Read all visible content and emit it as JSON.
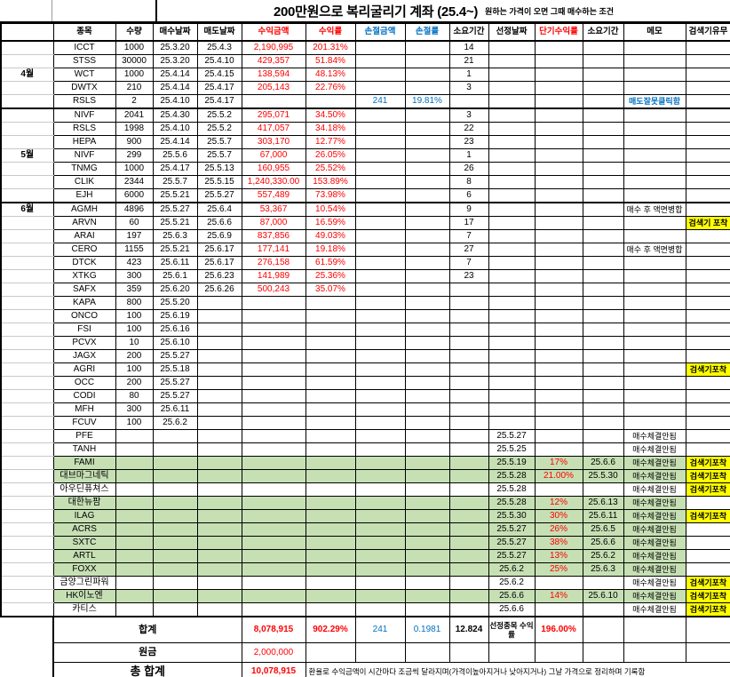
{
  "title": {
    "main": "200만원으로 복리굴리기 계좌 (25.4~)",
    "sub": "원하는 가격이 오면 그때 매수하는 조건"
  },
  "columns": [
    {
      "key": "month",
      "label": ""
    },
    {
      "key": "stock",
      "label": "종목"
    },
    {
      "key": "qty",
      "label": "수량"
    },
    {
      "key": "buy",
      "label": "매수날짜"
    },
    {
      "key": "sell",
      "label": "매도날짜"
    },
    {
      "key": "profit_amt",
      "label": "수익금액",
      "color": "red"
    },
    {
      "key": "profit_rate",
      "label": "수익률",
      "color": "red"
    },
    {
      "key": "loss_amt",
      "label": "손절금액",
      "color": "blue"
    },
    {
      "key": "loss_rate",
      "label": "손절률",
      "color": "blue"
    },
    {
      "key": "dur1",
      "label": "소요기간"
    },
    {
      "key": "sel_date",
      "label": "선정날짜"
    },
    {
      "key": "short_rate",
      "label": "단기수익률",
      "color": "red"
    },
    {
      "key": "dur2",
      "label": "소요기간"
    },
    {
      "key": "memo",
      "label": "메모"
    },
    {
      "key": "flag",
      "label": "검색기유무"
    }
  ],
  "rows": [
    {
      "stock": "ICCT",
      "qty": "1000",
      "buy": "25.3.20",
      "sell": "25.4.3",
      "profit_amt": "2,190,995",
      "profit_rate": "201.31%",
      "dur1": "14"
    },
    {
      "stock": "STSS",
      "qty": "30000",
      "buy": "25.3.20",
      "sell": "25.4.10",
      "profit_amt": "429,357",
      "profit_rate": "51.84%",
      "dur1": "21"
    },
    {
      "month": "4월",
      "stock": "WCT",
      "qty": "1000",
      "buy": "25.4.14",
      "sell": "25.4.15",
      "profit_amt": "138,594",
      "profit_rate": "48.13%",
      "dur1": "1"
    },
    {
      "stock": "DWTX",
      "qty": "210",
      "buy": "25.4.14",
      "sell": "25.4.17",
      "profit_amt": "205,143",
      "profit_rate": "22.76%",
      "dur1": "3"
    },
    {
      "stock": "RSLS",
      "qty": "2",
      "buy": "25.4.10",
      "sell": "25.4.17",
      "loss_amt": "241",
      "loss_rate": "19.81%",
      "memo": "매도잘못클릭함",
      "memo_blue": true
    },
    {
      "section": true,
      "stock": "NIVF",
      "qty": "2041",
      "buy": "25.4.30",
      "sell": "25.5.2",
      "profit_amt": "295,071",
      "profit_rate": "34.50%",
      "dur1": "3"
    },
    {
      "stock": "RSLS",
      "qty": "1998",
      "buy": "25.4.10",
      "sell": "25.5.2",
      "profit_amt": "417,057",
      "profit_rate": "34.18%",
      "dur1": "22"
    },
    {
      "stock": "HEPA",
      "qty": "900",
      "buy": "25.4.14",
      "sell": "25.5.7",
      "profit_amt": "303,170",
      "profit_rate": "12.77%",
      "dur1": "23"
    },
    {
      "month": "5월",
      "stock": "NIVF",
      "qty": "299",
      "buy": "25.5.6",
      "sell": "25.5.7",
      "profit_amt": "67,000",
      "profit_rate": "26.05%",
      "dur1": "1"
    },
    {
      "stock": "TNMG",
      "qty": "1000",
      "buy": "25.4.17",
      "sell": "25.5.13",
      "profit_amt": "160,955",
      "profit_rate": "25.52%",
      "dur1": "26"
    },
    {
      "stock": "CLIK",
      "qty": "2344",
      "buy": "25.5.7",
      "sell": "25.5.15",
      "profit_amt": "1,240,330.00",
      "profit_rate": "153.89%",
      "dur1": "8"
    },
    {
      "stock": "EJH",
      "qty": "6000",
      "buy": "25.5.21",
      "sell": "25.5.27",
      "profit_amt": "557,489",
      "profit_rate": "73.98%",
      "dur1": "6"
    },
    {
      "section": true,
      "month": "6월",
      "stock": "AGMH",
      "qty": "4896",
      "buy": "25.5.27",
      "sell": "25.6.4",
      "profit_amt": "53,367",
      "profit_rate": "10.54%",
      "dur1": "9",
      "memo": "매수 후 액면병합"
    },
    {
      "stock": "ARVN",
      "qty": "60",
      "buy": "25.5.21",
      "sell": "25.6.6",
      "profit_amt": "87,000",
      "profit_rate": "16.59%",
      "dur1": "17",
      "flag": "검색기 포착"
    },
    {
      "stock": "ARAI",
      "qty": "197",
      "buy": "25.6.3",
      "sell": "25.6.9",
      "profit_amt": "837,856",
      "profit_rate": "49.03%",
      "dur1": "7"
    },
    {
      "stock": "CERO",
      "qty": "1155",
      "buy": "25.5.21",
      "sell": "25.6.17",
      "profit_amt": "177,141",
      "profit_rate": "19.18%",
      "dur1": "27",
      "memo": "매수 후 액면병합"
    },
    {
      "stock": "DTCK",
      "qty": "423",
      "buy": "25.6.11",
      "sell": "25.6.17",
      "profit_amt": "276,158",
      "profit_rate": "61.59%",
      "dur1": "7"
    },
    {
      "stock": "XTKG",
      "qty": "300",
      "buy": "25.6.1",
      "sell": "25.6.23",
      "profit_amt": "141,989",
      "profit_rate": "25.36%",
      "dur1": "23"
    },
    {
      "stock": "SAFX",
      "qty": "359",
      "buy": "25.6.20",
      "sell": "25.6.26",
      "profit_amt": "500,243",
      "profit_rate": "35.07%"
    },
    {
      "stock": "KAPA",
      "qty": "800",
      "buy": "25.5.20"
    },
    {
      "stock": "ONCO",
      "qty": "100",
      "buy": "25.6.19"
    },
    {
      "stock": "FSI",
      "qty": "100",
      "buy": "25.6.16"
    },
    {
      "stock": "PCVX",
      "qty": "10",
      "buy": "25.6.10"
    },
    {
      "stock": "JAGX",
      "qty": "200",
      "buy": "25.5.27"
    },
    {
      "stock": "AGRI",
      "qty": "100",
      "buy": "25.5.18",
      "flag": "검색기포착"
    },
    {
      "stock": "OCC",
      "qty": "200",
      "buy": "25.5.27"
    },
    {
      "stock": "CODI",
      "qty": "80",
      "buy": "25.5.27"
    },
    {
      "stock": "MFH",
      "qty": "300",
      "buy": "25.6.11"
    },
    {
      "stock": "FCUV",
      "qty": "100",
      "buy": "25.6.2"
    },
    {
      "stock": "PFE",
      "sel_date": "25.5.27",
      "memo": "매수체결안됨"
    },
    {
      "stock": "TANH",
      "sel_date": "25.5.25",
      "memo": "매수체결안됨"
    },
    {
      "green": true,
      "stock": "FAMI",
      "sel_date": "25.5.19",
      "short_rate": "17%",
      "dur2": "25.6.6",
      "memo": "매수체결안됨",
      "flag": "검색기포착"
    },
    {
      "green": true,
      "stock": "대브마그네틱",
      "sel_date": "25.5.28",
      "short_rate": "21.00%",
      "dur2": "25.5.30",
      "memo": "매수체결안됨",
      "flag": "검색기포착"
    },
    {
      "stock": "아우딘퓨쳐스",
      "sel_date": "25.5.28",
      "memo": "매수체결안됨",
      "flag": "검색기포착"
    },
    {
      "green": true,
      "stock": "대한뉴팜",
      "sel_date": "25.5.28",
      "short_rate": "12%",
      "dur2": "25.6.13",
      "memo": "매수체결안됨"
    },
    {
      "green": true,
      "stock": "ILAG",
      "sel_date": "25.5.30",
      "short_rate": "30%",
      "dur2": "25.6.11",
      "memo": "매수체결안됨",
      "flag": "검색기포착"
    },
    {
      "green": true,
      "stock": "ACRS",
      "sel_date": "25.5.27",
      "short_rate": "26%",
      "dur2": "25.6.5",
      "memo": "매수체결안됨"
    },
    {
      "green": true,
      "stock": "SXTC",
      "sel_date": "25.5.27",
      "short_rate": "38%",
      "dur2": "25.6.6",
      "memo": "매수체결안됨"
    },
    {
      "green": true,
      "stock": "ARTL",
      "sel_date": "25.5.27",
      "short_rate": "13%",
      "dur2": "25.6.2",
      "memo": "매수체결안됨"
    },
    {
      "green": true,
      "stock": "FOXX",
      "sel_date": "25.6.2",
      "short_rate": "25%",
      "dur2": "25.6.3",
      "memo": "매수체결안됨"
    },
    {
      "stock": "금양그린파워",
      "sel_date": "25.6.2",
      "memo": "매수체결안됨",
      "flag": "검색기포착"
    },
    {
      "green": true,
      "stock": "HK이노엔",
      "sel_date": "25.6.6",
      "short_rate": "14%",
      "dur2": "25.6.10",
      "memo": "매수체결안됨",
      "flag": "검색기포착"
    },
    {
      "stock": "카티스",
      "sel_date": "25.6.6",
      "memo": "매수체결안됨",
      "flag": "검색기포착"
    }
  ],
  "summary": {
    "total_label": "합계",
    "total_profit": "8,078,915",
    "total_rate": "902.29%",
    "total_loss": "241",
    "total_loss_rate": "0.1981",
    "total_dur": "12.824",
    "sel_header": "선정종목 수익률",
    "sel_rate": "196.00%",
    "principal_label": "원금",
    "principal": "2,000,000",
    "grand_label": "총 합계",
    "grand_total": "10,078,915",
    "note": "환율로 수익금액이 시간마다 조금씩 달라지며(가격이높아지거나 낮아지거나) 그날 가격으로 정리하며 기록함"
  },
  "colors": {
    "profit_red": "#ff0000",
    "loss_blue": "#0070c0",
    "highlight_green": "#c6e0b4",
    "flag_yellow": "#ffff00"
  }
}
